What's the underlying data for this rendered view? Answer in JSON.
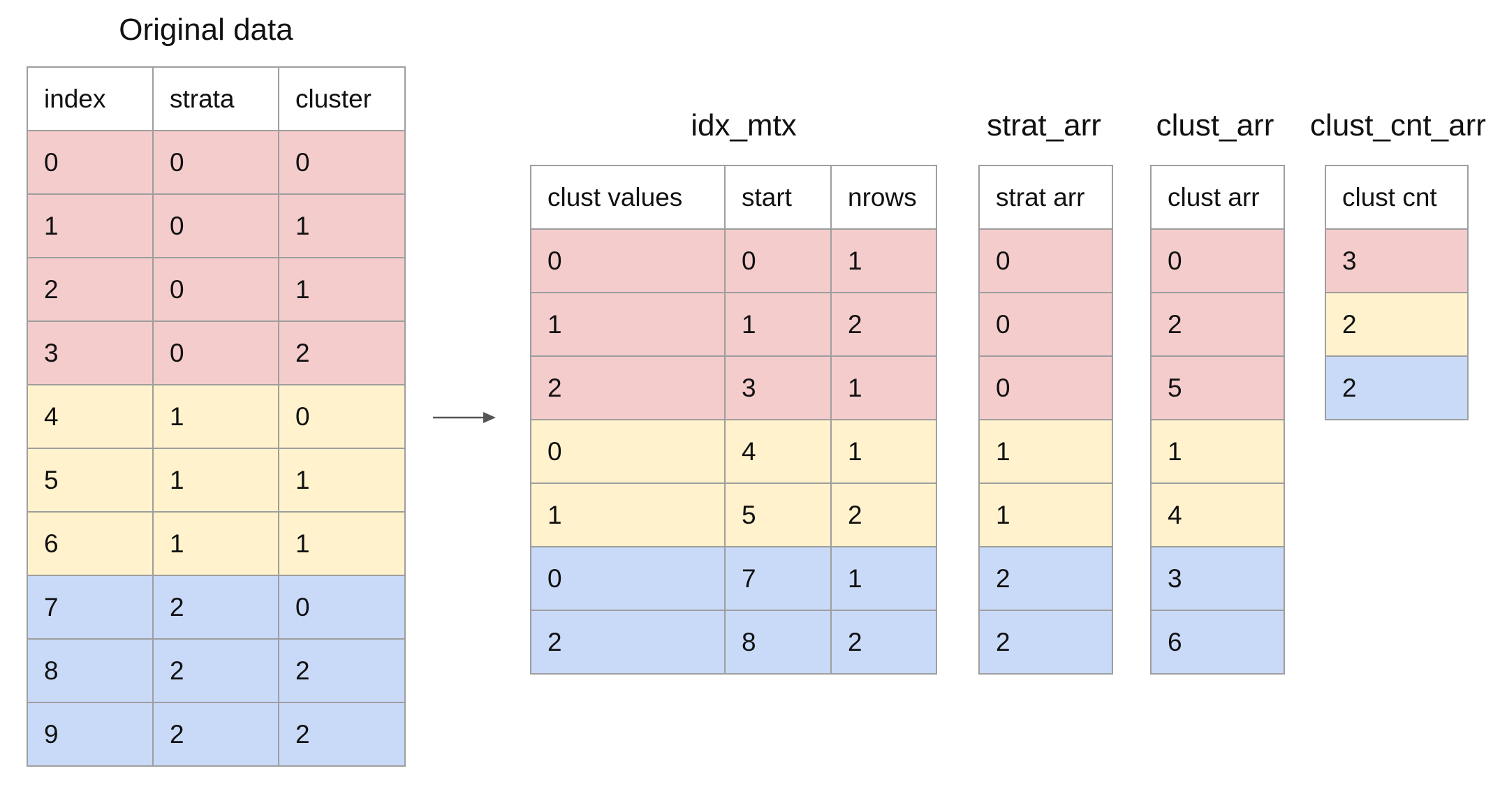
{
  "original": {
    "title": "Original data",
    "headers": [
      "index",
      "strata",
      "cluster"
    ],
    "rows": [
      {
        "cells": [
          "0",
          "0",
          "0"
        ],
        "color": "red"
      },
      {
        "cells": [
          "1",
          "0",
          "1"
        ],
        "color": "red"
      },
      {
        "cells": [
          "2",
          "0",
          "1"
        ],
        "color": "red"
      },
      {
        "cells": [
          "3",
          "0",
          "2"
        ],
        "color": "red"
      },
      {
        "cells": [
          "4",
          "1",
          "0"
        ],
        "color": "yellow"
      },
      {
        "cells": [
          "5",
          "1",
          "1"
        ],
        "color": "yellow"
      },
      {
        "cells": [
          "6",
          "1",
          "1"
        ],
        "color": "yellow"
      },
      {
        "cells": [
          "7",
          "2",
          "0"
        ],
        "color": "blue"
      },
      {
        "cells": [
          "8",
          "2",
          "2"
        ],
        "color": "blue"
      },
      {
        "cells": [
          "9",
          "2",
          "2"
        ],
        "color": "blue"
      }
    ]
  },
  "idx_mtx": {
    "title": "idx_mtx",
    "headers": [
      "clust values",
      "start",
      "nrows"
    ],
    "rows": [
      {
        "cells": [
          "0",
          "0",
          "1"
        ],
        "color": "red"
      },
      {
        "cells": [
          "1",
          "1",
          "2"
        ],
        "color": "red"
      },
      {
        "cells": [
          "2",
          "3",
          "1"
        ],
        "color": "red"
      },
      {
        "cells": [
          "0",
          "4",
          "1"
        ],
        "color": "yellow"
      },
      {
        "cells": [
          "1",
          "5",
          "2"
        ],
        "color": "yellow"
      },
      {
        "cells": [
          "0",
          "7",
          "1"
        ],
        "color": "blue"
      },
      {
        "cells": [
          "2",
          "8",
          "2"
        ],
        "color": "blue"
      }
    ]
  },
  "strat_arr": {
    "title": "strat_arr",
    "headers": [
      "strat arr"
    ],
    "rows": [
      {
        "cells": [
          "0"
        ],
        "color": "red"
      },
      {
        "cells": [
          "0"
        ],
        "color": "red"
      },
      {
        "cells": [
          "0"
        ],
        "color": "red"
      },
      {
        "cells": [
          "1"
        ],
        "color": "yellow"
      },
      {
        "cells": [
          "1"
        ],
        "color": "yellow"
      },
      {
        "cells": [
          "2"
        ],
        "color": "blue"
      },
      {
        "cells": [
          "2"
        ],
        "color": "blue"
      }
    ]
  },
  "clust_arr": {
    "title": "clust_arr",
    "headers": [
      "clust arr"
    ],
    "rows": [
      {
        "cells": [
          "0"
        ],
        "color": "red"
      },
      {
        "cells": [
          "2"
        ],
        "color": "red"
      },
      {
        "cells": [
          "5"
        ],
        "color": "red"
      },
      {
        "cells": [
          "1"
        ],
        "color": "yellow"
      },
      {
        "cells": [
          "4"
        ],
        "color": "yellow"
      },
      {
        "cells": [
          "3"
        ],
        "color": "blue"
      },
      {
        "cells": [
          "6"
        ],
        "color": "blue"
      }
    ]
  },
  "clust_cnt_arr": {
    "title": "clust_cnt_arr",
    "headers": [
      "clust cnt"
    ],
    "rows": [
      {
        "cells": [
          "3"
        ],
        "color": "red"
      },
      {
        "cells": [
          "2"
        ],
        "color": "yellow"
      },
      {
        "cells": [
          "2"
        ],
        "color": "blue"
      }
    ]
  },
  "colors": {
    "red": "#f4cccc",
    "yellow": "#fff2cc",
    "blue": "#c9daf8",
    "border": "#9e9e9e",
    "arrow": "#555555"
  }
}
